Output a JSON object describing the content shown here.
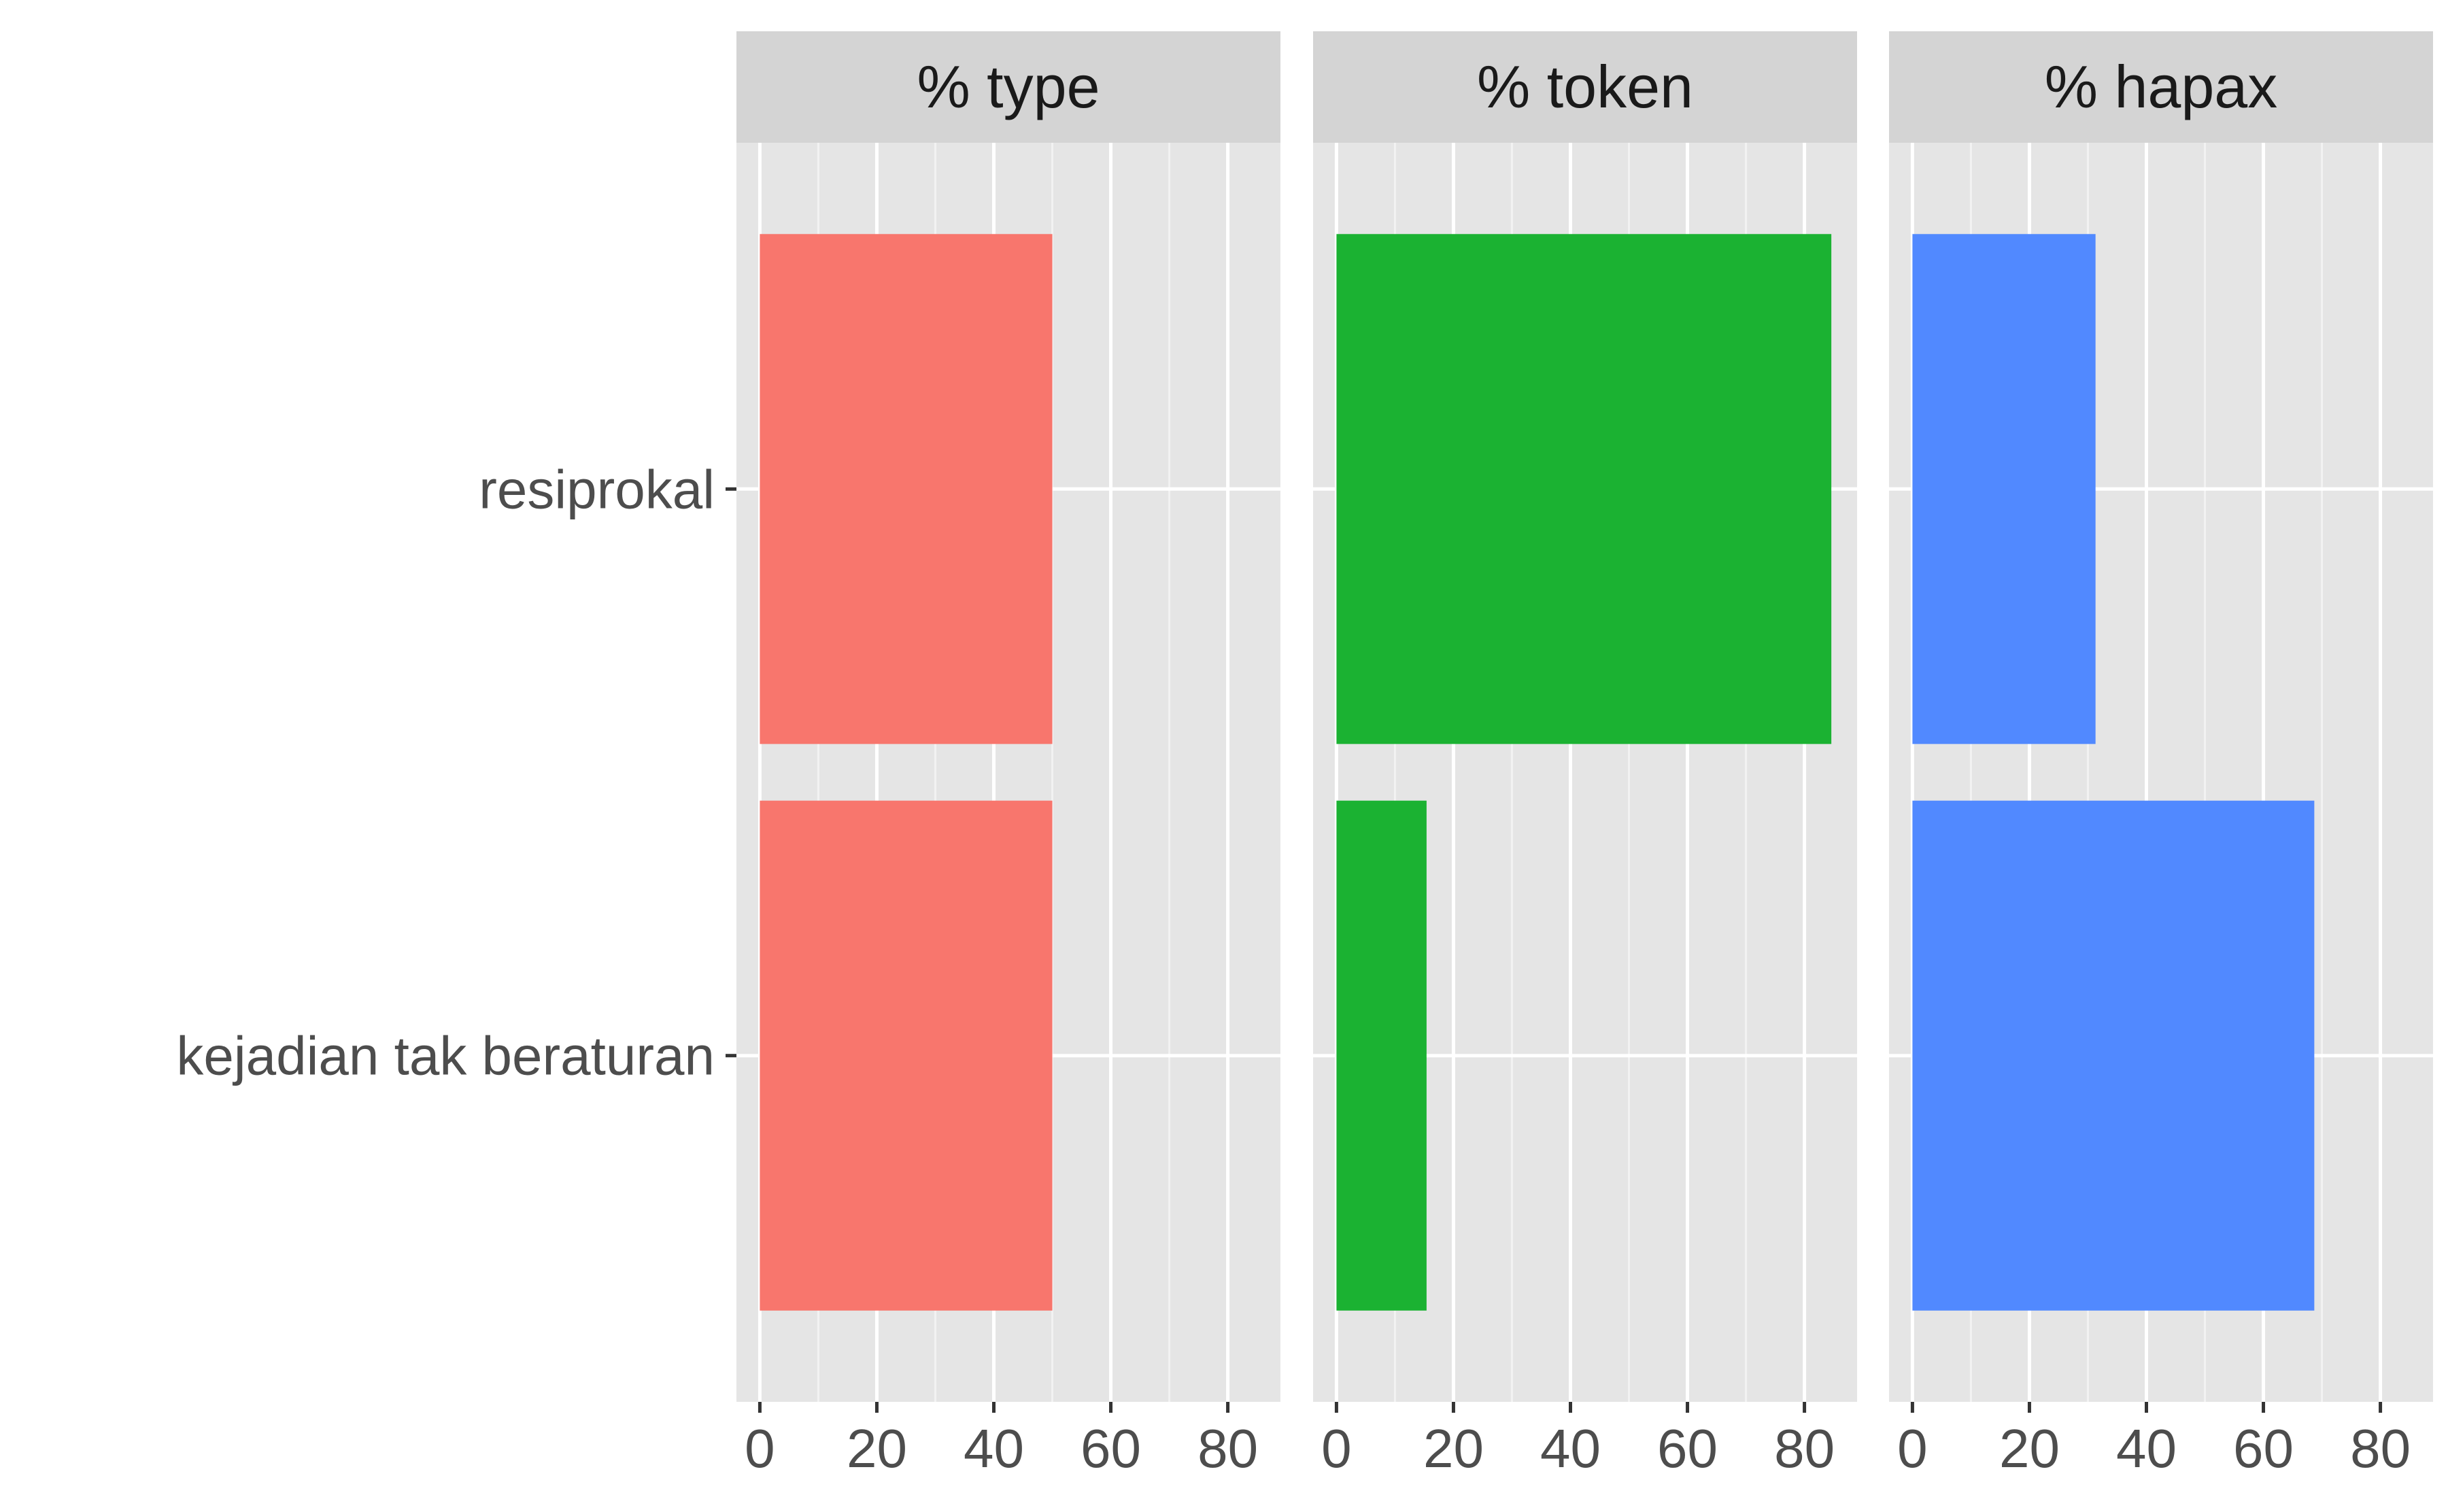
{
  "chart_data": {
    "type": "bar",
    "orientation": "horizontal",
    "categories": [
      "resiprokal",
      "kejadian tak beraturan"
    ],
    "panels": [
      {
        "title": "% type",
        "color": "#F8766D",
        "values": [
          50,
          50
        ]
      },
      {
        "title": "% token",
        "color": "#1BB232",
        "values": [
          84.6,
          15.4
        ]
      },
      {
        "title": "% hapax",
        "color": "#5189FF",
        "values": [
          31.3,
          68.7
        ]
      }
    ],
    "xticks": [
      "0",
      "20",
      "40",
      "60",
      "80"
    ],
    "xlim": [
      -4,
      89
    ],
    "grid": true,
    "legend": "none",
    "panel_background": "#E5E5E5",
    "strip_background": "#D4D4D4"
  }
}
